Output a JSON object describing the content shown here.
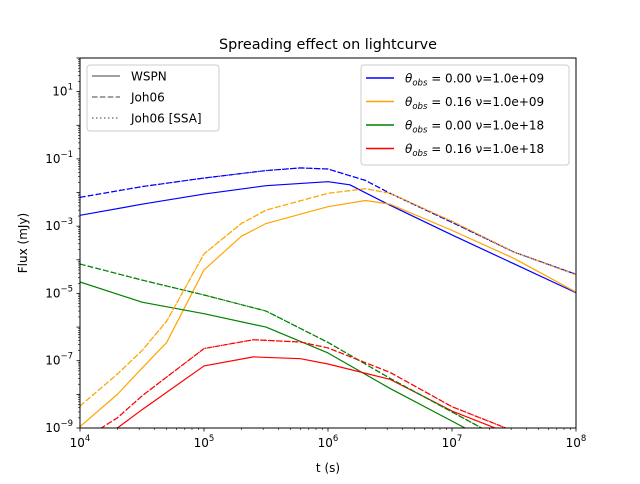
{
  "chart_data": {
    "type": "line",
    "title": "Spreading effect on lightcurve",
    "xlabel": "t (s)",
    "ylabel": "Flux (mJy)",
    "xscale": "log",
    "yscale": "log",
    "xlim": [
      10000,
      100000000
    ],
    "ylim": [
      1e-09,
      100
    ],
    "x_ticks": [
      {
        "exp": 4,
        "base": "10",
        "sup": "4"
      },
      {
        "exp": 5,
        "base": "10",
        "sup": "5"
      },
      {
        "exp": 6,
        "base": "10",
        "sup": "6"
      },
      {
        "exp": 7,
        "base": "10",
        "sup": "7"
      },
      {
        "exp": 8,
        "base": "10",
        "sup": "8"
      }
    ],
    "y_ticks": [
      {
        "exp": -9,
        "base": "10",
        "sup": "−9"
      },
      {
        "exp": -7,
        "base": "10",
        "sup": "−7"
      },
      {
        "exp": -5,
        "base": "10",
        "sup": "−5"
      },
      {
        "exp": -3,
        "base": "10",
        "sup": "−3"
      },
      {
        "exp": -1,
        "base": "10",
        "sup": "−1"
      },
      {
        "exp": 1,
        "base": "10",
        "sup": "1"
      }
    ],
    "style_legend": {
      "location": "upper left",
      "entries": [
        {
          "label": "WSPN",
          "dash": "solid"
        },
        {
          "label": "Joh06",
          "dash": "dashed"
        },
        {
          "label": "Joh06 [SSA]",
          "dash": "dotted"
        }
      ]
    },
    "color_legend": {
      "location": "upper right",
      "entries": [
        {
          "theta_symbol": "θ",
          "theta_sub": "obs",
          "text": " = 0.00 ν=1.0e+09",
          "color": "#0000ff"
        },
        {
          "theta_symbol": "θ",
          "theta_sub": "obs",
          "text": " = 0.16 ν=1.0e+09",
          "color": "#ffa500"
        },
        {
          "theta_symbol": "θ",
          "theta_sub": "obs",
          "text": " = 0.00 ν=1.0e+18",
          "color": "#008000"
        },
        {
          "theta_symbol": "θ",
          "theta_sub": "obs",
          "text": " = 0.16 ν=1.0e+18",
          "color": "#ff0000"
        }
      ]
    },
    "series": [
      {
        "color": "#0000ff",
        "model": "WSPN",
        "dash": "solid",
        "x": [
          10000,
          31620,
          100000,
          316200,
          1000000,
          1500000,
          3162000,
          10000000,
          31620000,
          100000000
        ],
        "y": [
          0.0021,
          0.0045,
          0.009,
          0.016,
          0.021,
          0.017,
          0.0042,
          0.00055,
          7.6e-05,
          1.05e-05
        ]
      },
      {
        "color": "#0000ff",
        "model": "Joh06",
        "dash": "dashed",
        "x": [
          10000,
          31620,
          100000,
          316200,
          600000,
          1000000,
          2000000,
          3162000,
          10000000,
          31620000,
          100000000
        ],
        "y": [
          0.0072,
          0.015,
          0.027,
          0.045,
          0.054,
          0.05,
          0.023,
          0.0095,
          0.0013,
          0.00017,
          3.7e-05
        ]
      },
      {
        "color": "#0000ff",
        "model": "Joh06 [SSA]",
        "dash": "dotted",
        "x": [
          10000,
          31620,
          100000,
          316200,
          600000,
          1000000,
          2000000,
          3162000,
          10000000,
          31620000,
          100000000
        ],
        "y": [
          0.0072,
          0.015,
          0.027,
          0.045,
          0.054,
          0.05,
          0.023,
          0.0095,
          0.0013,
          0.00017,
          3.7e-05
        ]
      },
      {
        "color": "#ffa500",
        "model": "WSPN",
        "dash": "solid",
        "x": [
          10000,
          20000,
          31620,
          50000,
          100000,
          200000,
          316200,
          1000000,
          2000000,
          3162000,
          10000000,
          31620000,
          100000000
        ],
        "y": [
          1.1e-09,
          1e-08,
          6e-08,
          3.5e-07,
          5e-05,
          0.0005,
          0.0012,
          0.0038,
          0.0058,
          0.0045,
          0.00075,
          0.00011,
          1.1e-05
        ]
      },
      {
        "color": "#ffa500",
        "model": "Joh06",
        "dash": "dashed",
        "x": [
          10000,
          20000,
          31620,
          50000,
          100000,
          200000,
          316200,
          1000000,
          2000000,
          3162000,
          10000000,
          31620000,
          100000000
        ],
        "y": [
          4.5e-09,
          4e-08,
          2e-07,
          1.5e-06,
          0.00015,
          0.0012,
          0.003,
          0.0095,
          0.013,
          0.0095,
          0.0014,
          0.00017,
          3.6e-05
        ]
      },
      {
        "color": "#ffa500",
        "model": "Joh06 [SSA]",
        "dash": "dotted",
        "x": [
          10000,
          20000,
          31620,
          50000,
          100000,
          200000,
          316200,
          1000000,
          2000000,
          3162000,
          10000000,
          31620000,
          100000000
        ],
        "y": [
          4.5e-09,
          4e-08,
          2e-07,
          1.5e-06,
          0.00015,
          0.0012,
          0.003,
          0.0095,
          0.013,
          0.0095,
          0.0014,
          0.00017,
          3.6e-05
        ]
      },
      {
        "color": "#008000",
        "model": "WSPN",
        "dash": "solid",
        "x": [
          10000,
          31620,
          100000,
          316200,
          1000000,
          3162000,
          10000000,
          31620000
        ],
        "y": [
          2.2e-05,
          5.5e-06,
          2.5e-06,
          1e-06,
          1.7e-07,
          1.5e-08,
          1.6e-09,
          1.7e-10
        ]
      },
      {
        "color": "#008000",
        "model": "Joh06",
        "dash": "dashed",
        "x": [
          10000,
          31620,
          100000,
          316200,
          1000000,
          3162000,
          10000000,
          31620000
        ],
        "y": [
          7.5e-05,
          2.5e-05,
          9e-06,
          3e-06,
          3.5e-07,
          3e-08,
          3e-09,
          3e-10
        ]
      },
      {
        "color": "#008000",
        "model": "Joh06 [SSA]",
        "dash": "dotted",
        "x": [
          10000,
          31620,
          100000,
          316200,
          1000000,
          3162000,
          10000000,
          31620000
        ],
        "y": [
          7.5e-05,
          2.5e-05,
          9e-06,
          3e-06,
          3.5e-07,
          3e-08,
          3e-09,
          3e-10
        ]
      },
      {
        "color": "#ff0000",
        "model": "WSPN",
        "dash": "solid",
        "x": [
          10000,
          20000,
          31620,
          100000,
          250000,
          600000,
          1000000,
          3162000,
          10000000,
          31620000
        ],
        "y": [
          2e-10,
          1e-09,
          3.5e-09,
          7e-08,
          1.3e-07,
          1.15e-07,
          8e-08,
          2.8e-08,
          3.2e-09,
          6e-10
        ]
      },
      {
        "color": "#ff0000",
        "model": "Joh06",
        "dash": "dashed",
        "x": [
          10000,
          20000,
          31620,
          100000,
          250000,
          600000,
          1000000,
          3162000,
          10000000,
          31620000
        ],
        "y": [
          4e-10,
          2e-09,
          9e-09,
          2.3e-07,
          4.2e-07,
          3.6e-07,
          2.4e-07,
          4.5e-08,
          4.3e-09,
          8e-10
        ]
      },
      {
        "color": "#ff0000",
        "model": "Joh06 [SSA]",
        "dash": "dotted",
        "x": [
          10000,
          20000,
          31620,
          100000,
          250000,
          600000,
          1000000,
          3162000,
          10000000,
          31620000
        ],
        "y": [
          4e-10,
          2e-09,
          9e-09,
          2.3e-07,
          4.2e-07,
          3.6e-07,
          2.4e-07,
          4.5e-08,
          4.3e-09,
          8e-10
        ]
      }
    ]
  }
}
